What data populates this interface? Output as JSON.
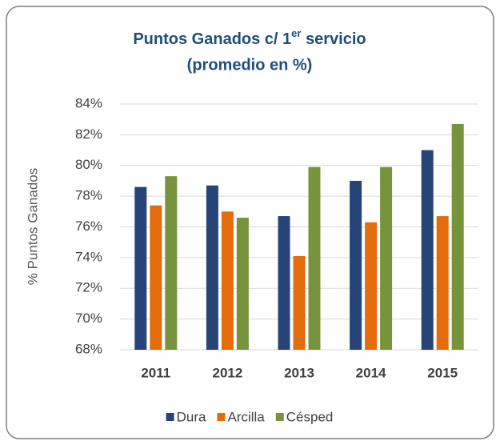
{
  "chart_data": {
    "type": "bar",
    "title": [
      "Puntos Ganados c/ 1",
      "er",
      " servicio"
    ],
    "subtitle": "(promedio en %)",
    "y_label": "% Puntos Ganados",
    "categories": [
      "2011",
      "2012",
      "2013",
      "2014",
      "2015"
    ],
    "series": [
      {
        "name": "Dura",
        "color": "#264478",
        "values": [
          78.6,
          78.7,
          76.7,
          79.0,
          81.0
        ]
      },
      {
        "name": "Arcilla",
        "color": "#E46C0A",
        "values": [
          77.4,
          77.0,
          74.1,
          76.3,
          76.7
        ]
      },
      {
        "name": "Césped",
        "color": "#77933C",
        "values": [
          79.3,
          76.6,
          79.9,
          79.9,
          82.7
        ]
      }
    ],
    "ylim": [
      68,
      84
    ],
    "yticks": [
      {
        "value": 68,
        "label": "68%"
      },
      {
        "value": 70,
        "label": "70%"
      },
      {
        "value": 72,
        "label": "72%"
      },
      {
        "value": 74,
        "label": "74%"
      },
      {
        "value": 76,
        "label": "76%"
      },
      {
        "value": 78,
        "label": "78%"
      },
      {
        "value": 80,
        "label": "80%"
      },
      {
        "value": 82,
        "label": "82%"
      },
      {
        "value": 84,
        "label": "84%"
      }
    ],
    "grid": true,
    "legend": "bottom"
  }
}
